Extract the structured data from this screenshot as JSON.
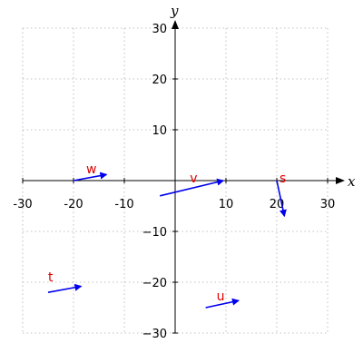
{
  "chart_data": {
    "type": "scatter",
    "subtype": "vector-field",
    "xlabel": "x",
    "ylabel": "y",
    "xlim": [
      -30,
      30
    ],
    "ylim": [
      -30,
      30
    ],
    "xticks": [
      -30,
      -20,
      -10,
      10,
      20,
      30
    ],
    "yticks": [
      -30,
      -20,
      -10,
      10,
      20,
      30
    ],
    "xtick_labels": [
      "-30",
      "-20",
      "-10",
      "10",
      "20",
      "30"
    ],
    "ytick_labels": [
      "−30",
      "−20",
      "−10",
      "10",
      "20",
      "30"
    ],
    "grid": true,
    "vectors": [
      {
        "label": "s",
        "from": [
          20,
          0
        ],
        "to": [
          21.5,
          -7
        ]
      },
      {
        "label": "t",
        "from": [
          -25,
          -22
        ],
        "to": [
          -18.5,
          -20.8
        ]
      },
      {
        "label": "u",
        "from": [
          6,
          -25
        ],
        "to": [
          12.5,
          -23.6
        ]
      },
      {
        "label": "v",
        "from": [
          -3,
          -3
        ],
        "to": [
          9.5,
          0
        ]
      },
      {
        "label": "w",
        "from": [
          -20,
          0
        ],
        "to": [
          -13.5,
          1.2
        ]
      }
    ],
    "colors": {
      "arrow": "#0000ee",
      "label": "#dd0000",
      "grid": "#b0b0b0",
      "axis": "#000000"
    }
  }
}
